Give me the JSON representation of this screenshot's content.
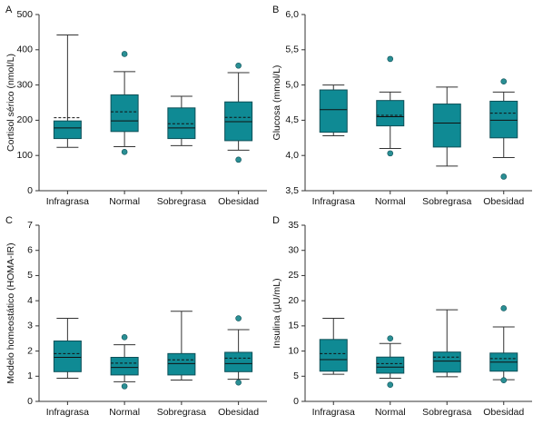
{
  "colors": {
    "box": "#0f8a94",
    "box_stroke": "#0d4f57",
    "outlier": "#2a8f94",
    "axis": "#333333",
    "median": "#111111",
    "mean": "#111111"
  },
  "chart_data": [
    {
      "type": "boxplot",
      "panel_letter": "A",
      "ylabel": "Cortisol sérico (nmol/L)",
      "ylim": [
        0,
        500
      ],
      "yticks": [
        0,
        100,
        200,
        300,
        400,
        500
      ],
      "ytick_labels": [
        "0",
        "100",
        "200",
        "300",
        "400",
        "500"
      ],
      "categories": [
        "Infragrasa",
        "Normal",
        "Sobregrasa",
        "Obesidad"
      ],
      "boxes": [
        {
          "category": "Infragrasa",
          "whisker_low": 123,
          "q1": 148,
          "median": 178,
          "q3": 198,
          "whisker_high": 442,
          "mean": 207,
          "outliers": []
        },
        {
          "category": "Normal",
          "whisker_low": 125,
          "q1": 168,
          "median": 198,
          "q3": 272,
          "whisker_high": 338,
          "mean": 224,
          "outliers": [
            110,
            388
          ]
        },
        {
          "category": "Sobregrasa",
          "whisker_low": 128,
          "q1": 148,
          "median": 178,
          "q3": 235,
          "whisker_high": 268,
          "mean": 190,
          "outliers": []
        },
        {
          "category": "Obesidad",
          "whisker_low": 115,
          "q1": 142,
          "median": 196,
          "q3": 252,
          "whisker_high": 335,
          "mean": 208,
          "outliers": [
            88,
            355
          ]
        }
      ]
    },
    {
      "type": "boxplot",
      "panel_letter": "B",
      "ylabel": "Glucosa (mmol/L)",
      "ylim": [
        3.5,
        6.0
      ],
      "yticks": [
        3.5,
        4.0,
        4.5,
        5.0,
        5.5,
        6.0
      ],
      "ytick_labels": [
        "3,5",
        "4,0",
        "4,5",
        "5,0",
        "5,5",
        "6,0"
      ],
      "categories": [
        "Infragrasa",
        "Normal",
        "Sobregrasa",
        "Obesidad"
      ],
      "boxes": [
        {
          "category": "Infragrasa",
          "whisker_low": 4.28,
          "q1": 4.33,
          "median": 4.65,
          "q3": 4.93,
          "whisker_high": 5.0,
          "mean": null,
          "outliers": []
        },
        {
          "category": "Normal",
          "whisker_low": 4.1,
          "q1": 4.42,
          "median": 4.55,
          "q3": 4.78,
          "whisker_high": 4.9,
          "mean": 4.57,
          "outliers": [
            4.03,
            5.37
          ]
        },
        {
          "category": "Sobregrasa",
          "whisker_low": 3.85,
          "q1": 4.12,
          "median": 4.46,
          "q3": 4.73,
          "whisker_high": 4.97,
          "mean": null,
          "outliers": []
        },
        {
          "category": "Obesidad",
          "whisker_low": 3.97,
          "q1": 4.25,
          "median": 4.5,
          "q3": 4.77,
          "whisker_high": 4.9,
          "mean": 4.6,
          "outliers": [
            3.7,
            5.05
          ]
        }
      ]
    },
    {
      "type": "boxplot",
      "panel_letter": "C",
      "ylabel": "Modelo homeostático (HOMA-IR)",
      "ylim": [
        0,
        7
      ],
      "yticks": [
        0,
        1,
        2,
        3,
        4,
        5,
        6,
        7
      ],
      "ytick_labels": [
        "0",
        "1",
        "2",
        "3",
        "4",
        "5",
        "6",
        "7"
      ],
      "categories": [
        "Infragrasa",
        "Normal",
        "Sobregrasa",
        "Obesidad"
      ],
      "boxes": [
        {
          "category": "Infragrasa",
          "whisker_low": 0.92,
          "q1": 1.18,
          "median": 1.75,
          "q3": 2.4,
          "whisker_high": 3.3,
          "mean": 1.9,
          "outliers": []
        },
        {
          "category": "Normal",
          "whisker_low": 0.78,
          "q1": 1.05,
          "median": 1.35,
          "q3": 1.75,
          "whisker_high": 2.25,
          "mean": 1.52,
          "outliers": [
            0.6,
            2.55
          ]
        },
        {
          "category": "Sobregrasa",
          "whisker_low": 0.85,
          "q1": 1.05,
          "median": 1.5,
          "q3": 1.9,
          "whisker_high": 3.58,
          "mean": 1.65,
          "outliers": []
        },
        {
          "category": "Obesidad",
          "whisker_low": 0.88,
          "q1": 1.18,
          "median": 1.5,
          "q3": 1.95,
          "whisker_high": 2.85,
          "mean": 1.72,
          "outliers": [
            0.75,
            3.3
          ]
        }
      ]
    },
    {
      "type": "boxplot",
      "panel_letter": "D",
      "ylabel": "Insulina (µU/mL)",
      "ylim": [
        0,
        35
      ],
      "yticks": [
        0,
        5,
        10,
        15,
        20,
        25,
        30,
        35
      ],
      "ytick_labels": [
        "0",
        "5",
        "10",
        "15",
        "20",
        "25",
        "30",
        "35"
      ],
      "categories": [
        "Infragrasa",
        "Normal",
        "Sobregrasa",
        "Obesidad"
      ],
      "boxes": [
        {
          "category": "Infragrasa",
          "whisker_low": 5.4,
          "q1": 6.0,
          "median": 8.3,
          "q3": 12.3,
          "whisker_high": 16.5,
          "mean": 9.5,
          "outliers": []
        },
        {
          "category": "Normal",
          "whisker_low": 4.6,
          "q1": 5.6,
          "median": 6.8,
          "q3": 8.8,
          "whisker_high": 11.5,
          "mean": 7.5,
          "outliers": [
            3.3,
            12.5
          ]
        },
        {
          "category": "Sobregrasa",
          "whisker_low": 4.9,
          "q1": 5.8,
          "median": 8.0,
          "q3": 9.8,
          "whisker_high": 18.2,
          "mean": 8.8,
          "outliers": []
        },
        {
          "category": "Obesidad",
          "whisker_low": 4.3,
          "q1": 6.0,
          "median": 7.8,
          "q3": 9.6,
          "whisker_high": 14.8,
          "mean": 8.5,
          "outliers": [
            4.2,
            18.5
          ]
        }
      ]
    }
  ]
}
